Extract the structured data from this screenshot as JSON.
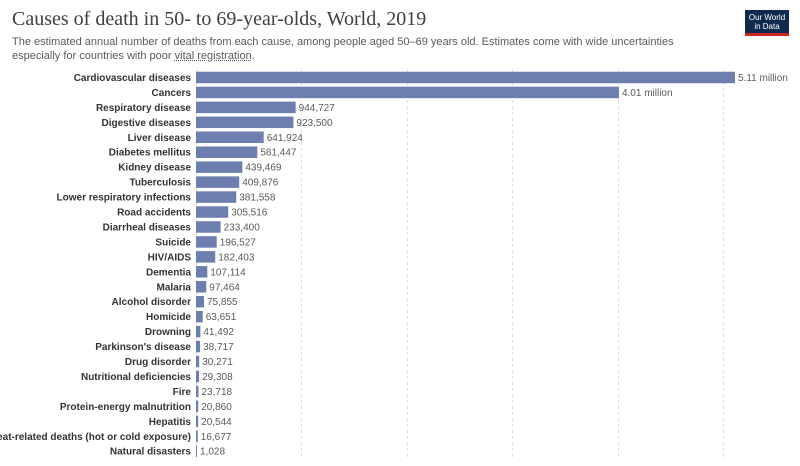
{
  "header": {
    "title": "Causes of death in 50- to 69-year-olds, World, 2019",
    "subtitle_start": "The estimated annual number of deaths from each cause, among people aged 50–69 years old. Estimates come with wide uncertainties especially for countries with poor ",
    "subtitle_link": "vital registration",
    "subtitle_end": ".",
    "logo_line1": "Our World",
    "logo_line2": "in Data"
  },
  "colors": {
    "bar": "#6d7fae",
    "logo_bg": "#0e2a4e",
    "logo_accent": "#ce261e"
  },
  "chart_data": {
    "type": "bar",
    "orientation": "horizontal",
    "title": "Causes of death in 50- to 69-year-olds, World, 2019",
    "categories": [
      "Cardiovascular diseases",
      "Cancers",
      "Respiratory disease",
      "Digestive diseases",
      "Liver disease",
      "Diabetes mellitus",
      "Kidney disease",
      "Tuberculosis",
      "Lower respiratory infections",
      "Road accidents",
      "Diarrheal diseases",
      "Suicide",
      "HIV/AIDS",
      "Dementia",
      "Malaria",
      "Alcohol disorder",
      "Homicide",
      "Drowning",
      "Parkinson's disease",
      "Drug disorder",
      "Nutritional deficiencies",
      "Fire",
      "Protein-energy malnutrition",
      "Hepatitis",
      "Heat-related deaths (hot or cold exposure)",
      "Natural disasters"
    ],
    "values": [
      5110000,
      4010000,
      944727,
      923500,
      641924,
      581447,
      439469,
      409876,
      381558,
      305516,
      233400,
      196527,
      182403,
      107114,
      97464,
      75855,
      63651,
      41492,
      38717,
      30271,
      29308,
      23718,
      20860,
      20544,
      16677,
      1028
    ],
    "value_labels": [
      "5.11 million",
      "4.01 million",
      "944,727",
      "923,500",
      "641,924",
      "581,447",
      "439,469",
      "409,876",
      "381,558",
      "305,516",
      "233,400",
      "196,527",
      "182,403",
      "107,114",
      "97,464",
      "75,855",
      "63,651",
      "41,492",
      "38,717",
      "30,271",
      "29,308",
      "23,718",
      "20,860",
      "20,544",
      "16,677",
      "1,028"
    ],
    "xlim": [
      0,
      5110000
    ],
    "gridlines_at": [
      0,
      1000000,
      2000000,
      3000000,
      4000000,
      5000000
    ],
    "grid": true,
    "legend": "none"
  }
}
